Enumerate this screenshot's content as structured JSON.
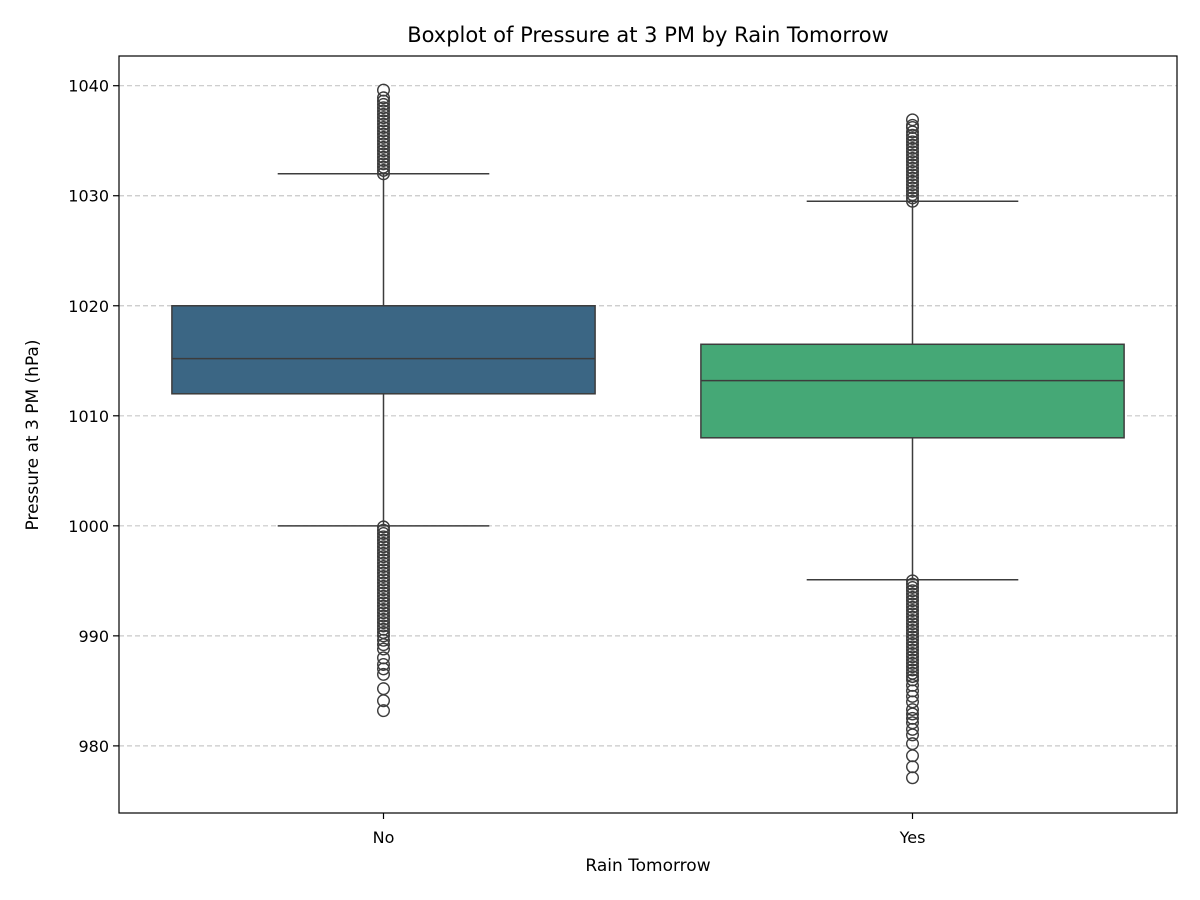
{
  "chart_data": {
    "type": "box",
    "title": "Boxplot of Pressure at 3 PM by Rain Tomorrow",
    "xlabel": "Rain Tomorrow",
    "ylabel": "Pressure at 3 PM (hPa)",
    "ylim": [
      973.9,
      1042.7
    ],
    "yticks": [
      980,
      990,
      1000,
      1010,
      1020,
      1030,
      1040
    ],
    "grid": {
      "axis": "y",
      "style": "dashed"
    },
    "categories": [
      "No",
      "Yes"
    ],
    "boxes": [
      {
        "category": "No",
        "whisker_low": 1000.0,
        "q1": 1012.0,
        "median": 1015.2,
        "q3": 1020.0,
        "whisker_high": 1032.0,
        "color": "#3b6684",
        "outliers_high": [
          1032.0,
          1032.3,
          1032.6,
          1032.9,
          1033.2,
          1033.5,
          1033.8,
          1034.1,
          1034.4,
          1034.7,
          1035.0,
          1035.3,
          1035.6,
          1035.9,
          1036.2,
          1036.5,
          1036.8,
          1037.1,
          1037.4,
          1037.7,
          1038.0,
          1038.3,
          1038.6,
          1038.9,
          1039.6
        ],
        "outliers_low": [
          999.9,
          999.6,
          999.3,
          999.0,
          998.7,
          998.4,
          998.1,
          997.8,
          997.5,
          997.2,
          996.9,
          996.6,
          996.3,
          996.0,
          995.7,
          995.4,
          995.1,
          994.8,
          994.5,
          994.2,
          993.9,
          993.6,
          993.3,
          993.0,
          992.7,
          992.4,
          992.1,
          991.8,
          991.5,
          991.2,
          990.9,
          990.6,
          990.3,
          990.0,
          989.6,
          989.2,
          988.8,
          988.0,
          987.4,
          987.0,
          986.5,
          985.2,
          984.1,
          983.2
        ]
      },
      {
        "category": "Yes",
        "whisker_low": 995.1,
        "q1": 1008.0,
        "median": 1013.2,
        "q3": 1016.5,
        "whisker_high": 1029.5,
        "color": "#45a876",
        "outliers_high": [
          1029.5,
          1029.8,
          1030.1,
          1030.4,
          1030.7,
          1031.0,
          1031.3,
          1031.6,
          1031.9,
          1032.2,
          1032.5,
          1032.8,
          1033.1,
          1033.4,
          1033.7,
          1034.0,
          1034.3,
          1034.6,
          1034.9,
          1035.2,
          1035.5,
          1035.8,
          1036.2,
          1036.4,
          1036.9
        ],
        "outliers_low": [
          995.0,
          994.7,
          994.4,
          994.1,
          993.8,
          993.5,
          993.2,
          992.9,
          992.6,
          992.3,
          992.0,
          991.7,
          991.4,
          991.1,
          990.8,
          990.5,
          990.2,
          989.9,
          989.6,
          989.3,
          989.0,
          988.7,
          988.4,
          988.1,
          987.8,
          987.5,
          987.2,
          986.9,
          986.6,
          986.3,
          986.0,
          985.5,
          985.0,
          984.5,
          984.0,
          983.3,
          982.9,
          982.5,
          982.1,
          981.5,
          981.0,
          980.2,
          979.1,
          978.1,
          977.1
        ]
      }
    ]
  }
}
